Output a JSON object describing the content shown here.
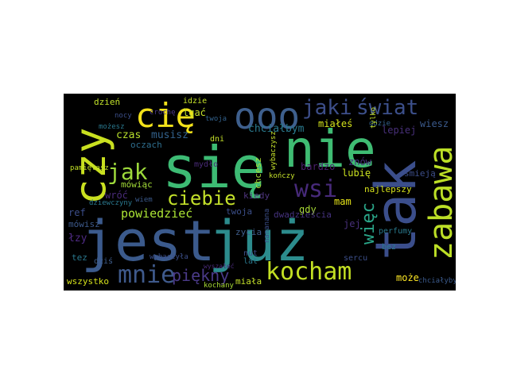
{
  "word_cloud": {
    "background": "#000000",
    "palette": "viridis",
    "words": [
      {
        "text": "się",
        "color": "#3dbb74"
      },
      {
        "text": "nie",
        "color": "#3fbc73"
      },
      {
        "text": "jest",
        "color": "#3b5a8c"
      },
      {
        "text": "już",
        "color": "#2c8c8d"
      },
      {
        "text": "tak",
        "color": "#3b4e8b"
      },
      {
        "text": "czy",
        "color": "#c9e020"
      },
      {
        "text": "zabawa",
        "color": "#bcdf26"
      },
      {
        "text": "cię",
        "color": "#f3e21a"
      },
      {
        "text": "ooo",
        "color": "#3e5f8d"
      },
      {
        "text": "jaki",
        "color": "#3d4e8a"
      },
      {
        "text": "świat",
        "color": "#3c4f8a"
      },
      {
        "text": "kocham",
        "color": "#c2df23"
      },
      {
        "text": "mnie",
        "color": "#3f5a8c"
      },
      {
        "text": "piękny",
        "color": "#4a3a88"
      },
      {
        "text": "jak",
        "color": "#9dd93b"
      },
      {
        "text": "ciebie",
        "color": "#c3e02a"
      },
      {
        "text": "wsi",
        "color": "#472a7a"
      },
      {
        "text": "więc",
        "color": "#2aa689"
      },
      {
        "text": "powiedzieć",
        "color": "#ade635"
      },
      {
        "text": "chciałbym",
        "color": "#2a7a8e"
      },
      {
        "text": "musisz",
        "color": "#33628d"
      },
      {
        "text": "czas",
        "color": "#b7de2c"
      },
      {
        "text": "oczach",
        "color": "#2e6e8e"
      },
      {
        "text": "mówiąc",
        "color": "#a2da37"
      },
      {
        "text": "wróć",
        "color": "#4a2b7a"
      },
      {
        "text": "dzień",
        "color": "#c0e02a"
      },
      {
        "text": "pamiętasz",
        "color": "#c0df25"
      },
      {
        "text": "ref",
        "color": "#3c4e8a"
      },
      {
        "text": "mówisz",
        "color": "#3d5a8c"
      },
      {
        "text": "łzy",
        "color": "#4e2a82"
      },
      {
        "text": "tez",
        "color": "#2a788e"
      },
      {
        "text": "dziś",
        "color": "#3f5e8d"
      },
      {
        "text": "wszystko",
        "color": "#d6e21b"
      },
      {
        "text": "miała",
        "color": "#c4e02a"
      },
      {
        "text": "może",
        "color": "#fde725"
      },
      {
        "text": "mam",
        "color": "#e6e419"
      },
      {
        "text": "gdy",
        "color": "#a8db34"
      },
      {
        "text": "lubię",
        "color": "#c8e020"
      },
      {
        "text": "znów",
        "color": "#46327e"
      },
      {
        "text": "lepiej",
        "color": "#48307a"
      },
      {
        "text": "wiesz",
        "color": "#3b5a8c"
      },
      {
        "text": "miałeś",
        "color": "#d3e21b"
      },
      {
        "text": "bardzo",
        "color": "#4b1f6f"
      },
      {
        "text": "twoja",
        "color": "#3c4f8a"
      },
      {
        "text": "kiedy",
        "color": "#4f357f"
      },
      {
        "text": "dwadzieścia",
        "color": "#45327e"
      },
      {
        "text": "najlepszy",
        "color": "#d6e21b"
      },
      {
        "text": "jej",
        "color": "#48307a"
      },
      {
        "text": "śmieją",
        "color": "#3d4e8a"
      },
      {
        "text": "perfumy",
        "color": "#2a7a8e"
      },
      {
        "text": "sercu",
        "color": "#3c4f8a"
      },
      {
        "text": "bez",
        "color": "#2a788e"
      },
      {
        "text": "kochany",
        "color": "#a8db34"
      },
      {
        "text": "idzie",
        "color": "#c4e02a"
      },
      {
        "text": "lgać",
        "color": "#c4e02a"
      },
      {
        "text": "nut",
        "color": "#3c4f8a"
      },
      {
        "text": "lat",
        "color": "#2a788e"
      },
      {
        "text": "zycia",
        "color": "#3f5e8d"
      },
      {
        "text": "chcesz",
        "color": "#a8db34"
      },
      {
        "text": "dni",
        "color": "#c4e02a"
      },
      {
        "text": "kończy",
        "color": "#c4e02a"
      },
      {
        "text": "nocy",
        "color": "#3c4f8a"
      },
      {
        "text": "mydło",
        "color": "#4a2b7a"
      },
      {
        "text": "wiem",
        "color": "#3b5a8c"
      },
      {
        "text": "dziewczyny",
        "color": "#2a788e"
      },
      {
        "text": "chciałyby",
        "color": "#3b5a8c"
      },
      {
        "text": "gdzie",
        "color": "#33628d"
      },
      {
        "text": "tylko",
        "color": "#c4e02a"
      },
      {
        "text": "wybaczysz",
        "color": "#c4e02a"
      },
      {
        "text": "crochę",
        "color": "#4a3a88"
      },
      {
        "text": "twoja",
        "color": "#33628d"
      },
      {
        "text": "możesz",
        "color": "#2a788e"
      },
      {
        "text": "wybaczyła",
        "color": "#3c4f8a"
      },
      {
        "text": "wyszałeć",
        "color": "#4a2b7a"
      },
      {
        "text": "nananana",
        "color": "#3c4f8a"
      }
    ]
  }
}
